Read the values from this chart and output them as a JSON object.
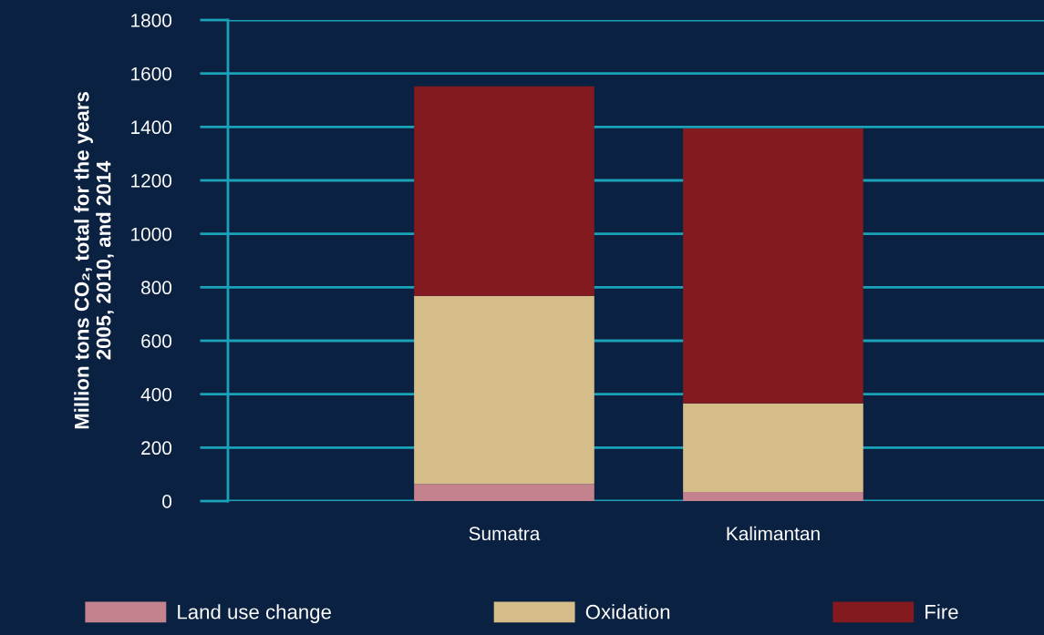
{
  "chart_data": {
    "type": "bar",
    "stacked": true,
    "ylabel": "Million tons CO₂, total for the years\n2005, 2010, and 2014",
    "categories": [
      "Sumatra",
      "Kalimantan"
    ],
    "series": [
      {
        "name": "Land use change",
        "color": "#c4828f",
        "values": [
          64,
          34
        ]
      },
      {
        "name": "Oxidation",
        "color": "#d4bd89",
        "values": [
          704,
          332
        ]
      },
      {
        "name": "Fire",
        "color": "#821a1f",
        "values": [
          784,
          1028
        ]
      }
    ],
    "ylim": [
      0,
      1800
    ],
    "yticks": [
      0,
      200,
      400,
      600,
      800,
      1000,
      1200,
      1400,
      1600,
      1800
    ],
    "grid": "y",
    "legend": "bottom"
  }
}
